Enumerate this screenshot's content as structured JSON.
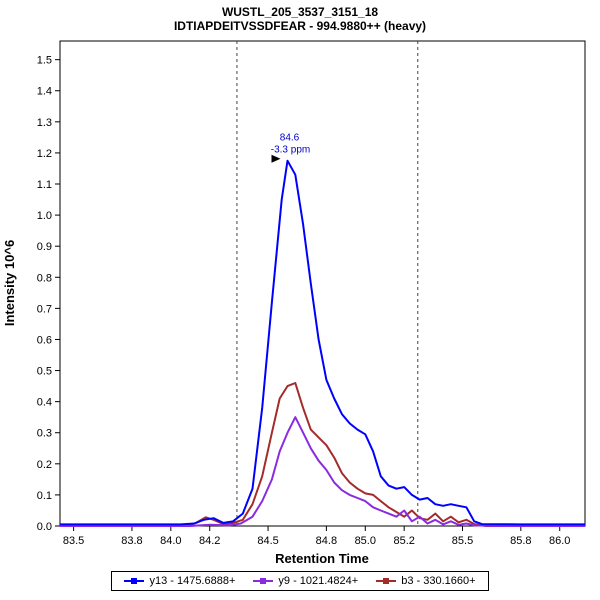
{
  "title": "WUSTL_205_3537_3151_18",
  "subtitle": "IDTIAPDEITVSSDFEAR - 994.9880++ (heavy)",
  "chart_data": {
    "type": "line",
    "title": "WUSTL_205_3537_3151_18",
    "subtitle": "IDTIAPDEITVSSDFEAR - 994.9880++ (heavy)",
    "xlabel": "Retention Time",
    "ylabel": "Intensity 10^6",
    "xlim": [
      83.43,
      86.13
    ],
    "ylim": [
      0,
      1.56
    ],
    "grid": false,
    "legend_position": "bottom",
    "x_ticks": [
      83.5,
      83.8,
      84.0,
      84.2,
      84.5,
      84.8,
      85.0,
      85.2,
      85.5,
      85.8,
      86.0
    ],
    "x_tick_labels": [
      "83.5",
      "83.8",
      "84.0",
      "84.2",
      "84.5",
      "84.8",
      "85.0",
      "85.2",
      "85.5",
      "85.8",
      "86.0"
    ],
    "y_ticks": [
      0.0,
      0.1,
      0.2,
      0.3,
      0.4,
      0.5,
      0.6,
      0.7,
      0.8,
      0.9,
      1.0,
      1.1,
      1.2,
      1.3,
      1.4,
      1.5
    ],
    "y_tick_labels": [
      "0.0",
      "0.1",
      "0.2",
      "0.3",
      "0.4",
      "0.5",
      "0.6",
      "0.7",
      "0.8",
      "0.9",
      "1.0",
      "1.1",
      "1.2",
      "1.3",
      "1.4",
      "1.5"
    ],
    "boundaries": [
      84.34,
      85.27
    ],
    "annotation": {
      "rt": 84.6,
      "intensity": 1.175,
      "rt_label": "84.6",
      "ppm_label": "-3.3 ppm",
      "color": "#0000cc"
    },
    "series": [
      {
        "name": "y13",
        "label": "y13 - 1475.6888+",
        "color": "#0000ff",
        "points": [
          [
            83.43,
            0.005
          ],
          [
            83.8,
            0.005
          ],
          [
            84.05,
            0.005
          ],
          [
            84.12,
            0.008
          ],
          [
            84.17,
            0.02
          ],
          [
            84.22,
            0.025
          ],
          [
            84.27,
            0.01
          ],
          [
            84.32,
            0.015
          ],
          [
            84.37,
            0.04
          ],
          [
            84.42,
            0.12
          ],
          [
            84.47,
            0.38
          ],
          [
            84.52,
            0.72
          ],
          [
            84.57,
            1.05
          ],
          [
            84.6,
            1.175
          ],
          [
            84.64,
            1.13
          ],
          [
            84.68,
            0.97
          ],
          [
            84.72,
            0.78
          ],
          [
            84.76,
            0.6
          ],
          [
            84.8,
            0.47
          ],
          [
            84.84,
            0.41
          ],
          [
            84.88,
            0.36
          ],
          [
            84.92,
            0.33
          ],
          [
            84.96,
            0.31
          ],
          [
            85.0,
            0.295
          ],
          [
            85.04,
            0.24
          ],
          [
            85.08,
            0.16
          ],
          [
            85.12,
            0.13
          ],
          [
            85.16,
            0.12
          ],
          [
            85.2,
            0.125
          ],
          [
            85.24,
            0.1
          ],
          [
            85.28,
            0.085
          ],
          [
            85.32,
            0.09
          ],
          [
            85.36,
            0.07
          ],
          [
            85.4,
            0.065
          ],
          [
            85.44,
            0.07
          ],
          [
            85.48,
            0.065
          ],
          [
            85.52,
            0.06
          ],
          [
            85.56,
            0.015
          ],
          [
            85.6,
            0.006
          ],
          [
            85.8,
            0.005
          ],
          [
            86.13,
            0.005
          ]
        ]
      },
      {
        "name": "y9",
        "label": "y9 - 1021.4824+",
        "color": "#8a2be2",
        "points": [
          [
            83.43,
            0.0
          ],
          [
            84.1,
            0.0
          ],
          [
            84.2,
            0.004
          ],
          [
            84.3,
            0.002
          ],
          [
            84.36,
            0.008
          ],
          [
            84.42,
            0.03
          ],
          [
            84.47,
            0.08
          ],
          [
            84.52,
            0.15
          ],
          [
            84.56,
            0.24
          ],
          [
            84.6,
            0.3
          ],
          [
            84.64,
            0.35
          ],
          [
            84.68,
            0.3
          ],
          [
            84.72,
            0.25
          ],
          [
            84.76,
            0.21
          ],
          [
            84.8,
            0.18
          ],
          [
            84.84,
            0.14
          ],
          [
            84.88,
            0.115
          ],
          [
            84.92,
            0.1
          ],
          [
            84.96,
            0.09
          ],
          [
            85.0,
            0.08
          ],
          [
            85.04,
            0.06
          ],
          [
            85.08,
            0.05
          ],
          [
            85.12,
            0.04
          ],
          [
            85.16,
            0.03
          ],
          [
            85.2,
            0.05
          ],
          [
            85.24,
            0.015
          ],
          [
            85.28,
            0.03
          ],
          [
            85.32,
            0.008
          ],
          [
            85.36,
            0.02
          ],
          [
            85.4,
            0.005
          ],
          [
            85.44,
            0.015
          ],
          [
            85.48,
            0.004
          ],
          [
            85.52,
            0.008
          ],
          [
            85.56,
            0.002
          ],
          [
            85.7,
            0.0
          ],
          [
            86.13,
            0.0
          ]
        ]
      },
      {
        "name": "b3",
        "label": "b3 - 330.1660+",
        "color": "#a52a2a",
        "points": [
          [
            83.43,
            0.0
          ],
          [
            84.08,
            0.0
          ],
          [
            84.13,
            0.01
          ],
          [
            84.18,
            0.028
          ],
          [
            84.22,
            0.02
          ],
          [
            84.27,
            0.006
          ],
          [
            84.32,
            0.01
          ],
          [
            84.37,
            0.02
          ],
          [
            84.42,
            0.07
          ],
          [
            84.47,
            0.16
          ],
          [
            84.52,
            0.3
          ],
          [
            84.56,
            0.41
          ],
          [
            84.6,
            0.45
          ],
          [
            84.64,
            0.46
          ],
          [
            84.68,
            0.38
          ],
          [
            84.72,
            0.31
          ],
          [
            84.76,
            0.285
          ],
          [
            84.8,
            0.26
          ],
          [
            84.84,
            0.22
          ],
          [
            84.88,
            0.17
          ],
          [
            84.92,
            0.14
          ],
          [
            84.96,
            0.12
          ],
          [
            85.0,
            0.105
          ],
          [
            85.04,
            0.1
          ],
          [
            85.08,
            0.08
          ],
          [
            85.12,
            0.06
          ],
          [
            85.16,
            0.045
          ],
          [
            85.2,
            0.03
          ],
          [
            85.24,
            0.05
          ],
          [
            85.28,
            0.025
          ],
          [
            85.32,
            0.02
          ],
          [
            85.36,
            0.04
          ],
          [
            85.4,
            0.015
          ],
          [
            85.44,
            0.03
          ],
          [
            85.48,
            0.012
          ],
          [
            85.52,
            0.02
          ],
          [
            85.56,
            0.006
          ],
          [
            85.62,
            0.0
          ],
          [
            86.13,
            0.0
          ]
        ]
      }
    ]
  }
}
